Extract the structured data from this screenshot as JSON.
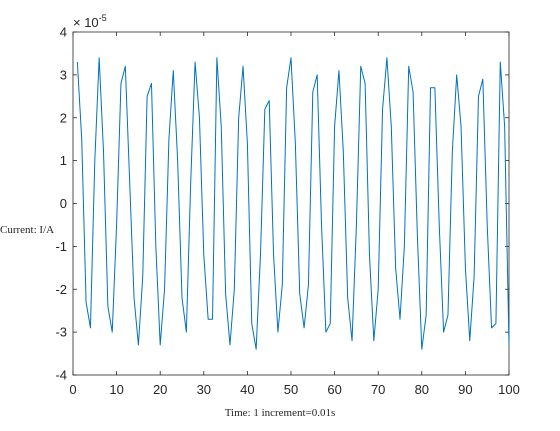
{
  "chart_data": {
    "type": "line",
    "xlabel": "Time: 1 increment=0.01s",
    "ylabel": "Current: I/A",
    "xlim": [
      0,
      100
    ],
    "ylim": [
      -4,
      4
    ],
    "y_scale_exponent_base": "× 10",
    "y_scale_exponent": "-5",
    "x_ticks": [
      "0",
      "10",
      "20",
      "30",
      "40",
      "50",
      "60",
      "70",
      "80",
      "90",
      "100"
    ],
    "y_ticks": [
      "-4",
      "-3",
      "-2",
      "-1",
      "0",
      "1",
      "2",
      "3",
      "4"
    ],
    "grid": false,
    "line_color": "#0072BD",
    "series": [
      {
        "x": [
          1,
          2,
          3,
          4,
          5,
          6,
          7,
          8,
          9,
          10,
          11,
          12,
          13,
          14,
          15,
          16,
          17,
          18,
          19,
          20,
          21,
          22,
          23,
          24,
          25,
          26,
          27,
          28,
          29,
          30,
          31,
          32,
          33,
          34,
          35,
          36,
          37,
          38,
          39,
          40,
          41,
          42,
          43,
          44,
          45,
          46,
          47,
          48,
          49,
          50,
          51,
          52,
          53,
          54,
          55,
          56,
          57,
          58,
          59,
          60,
          61,
          62,
          63,
          64,
          65,
          66,
          67,
          68,
          69,
          70,
          71,
          72,
          73,
          74,
          75,
          76,
          77,
          78,
          79,
          80,
          81,
          82,
          83,
          84,
          85,
          86,
          87,
          88,
          89,
          90,
          91,
          92,
          93,
          94,
          95,
          96,
          97,
          98,
          99,
          100
        ],
        "values": [
          3.3,
          1.5,
          -2.3,
          -2.9,
          1.0,
          3.4,
          1.2,
          -2.4,
          -3.0,
          -0.5,
          2.8,
          3.2,
          0.5,
          -2.2,
          -3.3,
          -1.7,
          2.5,
          2.8,
          -1.0,
          -3.3,
          -2.0,
          1.5,
          3.1,
          1.0,
          -2.2,
          -3.0,
          0.5,
          3.3,
          2.0,
          -1.2,
          -2.7,
          -2.7,
          3.4,
          1.8,
          -2.1,
          -3.3,
          -2.0,
          2.0,
          3.2,
          1.4,
          -2.8,
          -3.4,
          -1.2,
          2.2,
          2.4,
          -1.2,
          -3.0,
          -1.9,
          2.7,
          3.4,
          1.4,
          -2.1,
          -2.9,
          -1.9,
          2.6,
          3.0,
          -0.5,
          -3.0,
          -2.8,
          1.8,
          3.1,
          1.2,
          -2.2,
          -3.2,
          -0.5,
          3.2,
          2.8,
          -1.2,
          -3.2,
          -2.0,
          2.2,
          3.4,
          1.8,
          -1.5,
          -2.7,
          -1.0,
          3.2,
          2.6,
          -0.8,
          -3.4,
          -2.6,
          2.7,
          2.7,
          -0.5,
          -3.0,
          -2.6,
          1.2,
          3.0,
          1.8,
          -1.5,
          -3.2,
          -1.7,
          2.5,
          2.9,
          -0.5,
          -2.9,
          -2.8,
          3.3,
          1.8,
          -3.3
        ]
      }
    ]
  }
}
